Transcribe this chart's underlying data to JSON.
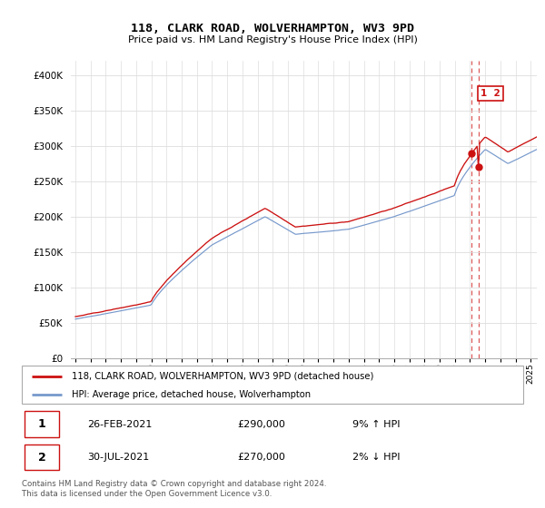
{
  "title": "118, CLARK ROAD, WOLVERHAMPTON, WV3 9PD",
  "subtitle": "Price paid vs. HM Land Registry's House Price Index (HPI)",
  "legend_line1": "118, CLARK ROAD, WOLVERHAMPTON, WV3 9PD (detached house)",
  "legend_line2": "HPI: Average price, detached house, Wolverhampton",
  "sale1_date": "26-FEB-2021",
  "sale1_price": "£290,000",
  "sale1_hpi": "9% ↑ HPI",
  "sale2_date": "30-JUL-2021",
  "sale2_price": "£270,000",
  "sale2_hpi": "2% ↓ HPI",
  "footer": "Contains HM Land Registry data © Crown copyright and database right 2024.\nThis data is licensed under the Open Government Licence v3.0.",
  "hpi_color": "#7799cc",
  "price_color": "#cc1111",
  "vline_color": "#cc1111",
  "ylim": [
    0,
    420000
  ],
  "yticks": [
    0,
    50000,
    100000,
    150000,
    200000,
    250000,
    300000,
    350000,
    400000
  ],
  "grid_color": "#dddddd",
  "t_sale1": 2021.12,
  "t_sale2": 2021.58,
  "sale1_value": 290000,
  "sale2_value": 270000
}
